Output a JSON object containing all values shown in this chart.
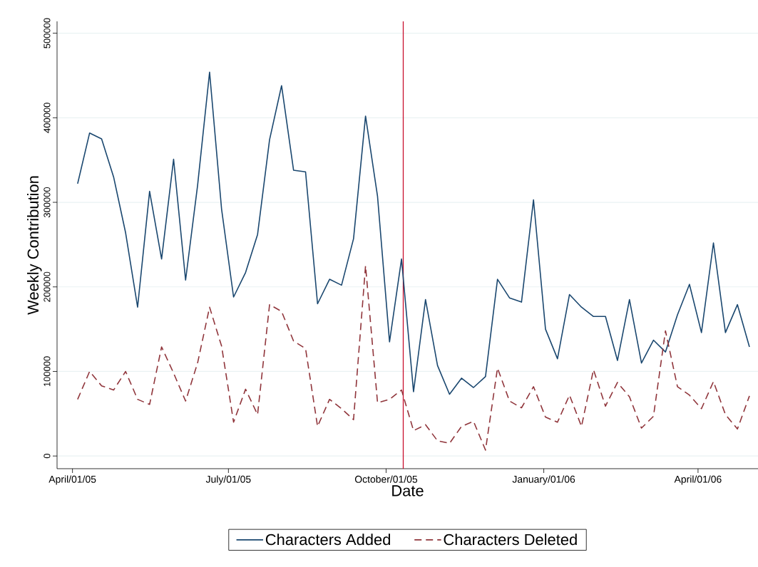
{
  "chart_data": {
    "type": "line",
    "xlabel": "Date",
    "ylabel": "Weekly Contribution",
    "x": [
      "2005-04-04",
      "2005-04-11",
      "2005-04-18",
      "2005-04-25",
      "2005-05-02",
      "2005-05-09",
      "2005-05-16",
      "2005-05-23",
      "2005-05-30",
      "2005-06-06",
      "2005-06-13",
      "2005-06-20",
      "2005-06-27",
      "2005-07-04",
      "2005-07-11",
      "2005-07-18",
      "2005-07-25",
      "2005-08-01",
      "2005-08-08",
      "2005-08-15",
      "2005-08-22",
      "2005-08-29",
      "2005-09-05",
      "2005-09-12",
      "2005-09-19",
      "2005-09-26",
      "2005-10-03",
      "2005-10-10",
      "2005-10-17",
      "2005-10-24",
      "2005-10-31",
      "2005-11-07",
      "2005-11-14",
      "2005-11-21",
      "2005-11-28",
      "2005-12-05",
      "2005-12-12",
      "2005-12-19",
      "2005-12-26",
      "2006-01-02",
      "2006-01-09",
      "2006-01-16",
      "2006-01-23",
      "2006-01-30",
      "2006-02-06",
      "2006-02-13",
      "2006-02-20",
      "2006-02-27",
      "2006-03-06",
      "2006-03-13",
      "2006-03-20",
      "2006-03-27",
      "2006-04-03",
      "2006-04-10",
      "2006-04-17",
      "2006-04-24",
      "2006-05-01"
    ],
    "series": [
      {
        "name": "Characters Added",
        "color": "#1a476f",
        "line_style": "solid",
        "values": [
          322000,
          382000,
          375000,
          330000,
          264000,
          176000,
          313000,
          233000,
          351000,
          208000,
          320000,
          454000,
          292000,
          188000,
          217000,
          262000,
          374000,
          438000,
          338000,
          336000,
          180000,
          209000,
          202000,
          257000,
          402000,
          307000,
          135000,
          233000,
          76000,
          185000,
          107000,
          73000,
          92000,
          81000,
          94000,
          209000,
          187000,
          182000,
          303000,
          150000,
          115000,
          191000,
          176000,
          165000,
          165000,
          113000,
          185000,
          110000,
          137000,
          123000,
          167000,
          203000,
          146000,
          252000,
          146000,
          179000,
          129000
        ]
      },
      {
        "name": "Characters Deleted",
        "color": "#90353b",
        "line_style": "dashed",
        "values": [
          67000,
          100000,
          83000,
          78000,
          100000,
          67000,
          61000,
          129000,
          98000,
          65000,
          110000,
          176000,
          130000,
          40000,
          79000,
          49000,
          179000,
          171000,
          136000,
          127000,
          35000,
          67000,
          56000,
          43000,
          225000,
          63000,
          67000,
          78000,
          30000,
          37000,
          18000,
          15000,
          35000,
          41000,
          7000,
          104000,
          65000,
          57000,
          82000,
          46000,
          40000,
          72000,
          35000,
          102000,
          59000,
          87000,
          70000,
          33000,
          47000,
          148000,
          82000,
          72000,
          56000,
          88000,
          49000,
          32000,
          71000
        ]
      }
    ],
    "xlim": [
      "2005-03-23",
      "2006-05-06"
    ],
    "xticks": [
      {
        "value": "2005-04-01",
        "label": "April/01/05"
      },
      {
        "value": "2005-07-01",
        "label": "July/01/05"
      },
      {
        "value": "2005-10-01",
        "label": "October/01/05"
      },
      {
        "value": "2006-01-01",
        "label": "January/01/06"
      },
      {
        "value": "2006-04-01",
        "label": "April/01/06"
      }
    ],
    "ylim": [
      -15000,
      514000
    ],
    "yticks": [
      0,
      100000,
      200000,
      300000,
      400000,
      500000
    ],
    "ref_lines": [
      {
        "axis": "x",
        "value": "2005-10-11",
        "color": "#c8102e"
      }
    ],
    "grid": "y",
    "legend": "bottom"
  }
}
